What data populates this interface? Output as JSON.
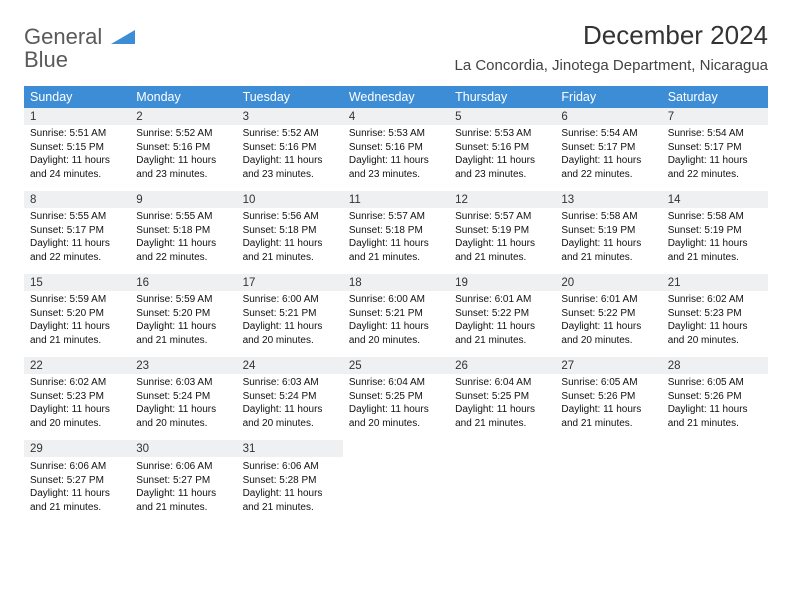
{
  "logo": {
    "text1": "General",
    "text2": "Blue"
  },
  "title": "December 2024",
  "location": "La Concordia, Jinotega Department, Nicaragua",
  "colors": {
    "header_bg": "#3c8dd6",
    "daynum_bg": "#eef0f1",
    "row_border": "#3c8dd6",
    "text": "#111111",
    "title_text": "#333333"
  },
  "dayNames": [
    "Sunday",
    "Monday",
    "Tuesday",
    "Wednesday",
    "Thursday",
    "Friday",
    "Saturday"
  ],
  "weeks": [
    [
      {
        "n": "1",
        "sr": "5:51 AM",
        "ss": "5:15 PM",
        "dl": "11 hours and 24 minutes."
      },
      {
        "n": "2",
        "sr": "5:52 AM",
        "ss": "5:16 PM",
        "dl": "11 hours and 23 minutes."
      },
      {
        "n": "3",
        "sr": "5:52 AM",
        "ss": "5:16 PM",
        "dl": "11 hours and 23 minutes."
      },
      {
        "n": "4",
        "sr": "5:53 AM",
        "ss": "5:16 PM",
        "dl": "11 hours and 23 minutes."
      },
      {
        "n": "5",
        "sr": "5:53 AM",
        "ss": "5:16 PM",
        "dl": "11 hours and 23 minutes."
      },
      {
        "n": "6",
        "sr": "5:54 AM",
        "ss": "5:17 PM",
        "dl": "11 hours and 22 minutes."
      },
      {
        "n": "7",
        "sr": "5:54 AM",
        "ss": "5:17 PM",
        "dl": "11 hours and 22 minutes."
      }
    ],
    [
      {
        "n": "8",
        "sr": "5:55 AM",
        "ss": "5:17 PM",
        "dl": "11 hours and 22 minutes."
      },
      {
        "n": "9",
        "sr": "5:55 AM",
        "ss": "5:18 PM",
        "dl": "11 hours and 22 minutes."
      },
      {
        "n": "10",
        "sr": "5:56 AM",
        "ss": "5:18 PM",
        "dl": "11 hours and 21 minutes."
      },
      {
        "n": "11",
        "sr": "5:57 AM",
        "ss": "5:18 PM",
        "dl": "11 hours and 21 minutes."
      },
      {
        "n": "12",
        "sr": "5:57 AM",
        "ss": "5:19 PM",
        "dl": "11 hours and 21 minutes."
      },
      {
        "n": "13",
        "sr": "5:58 AM",
        "ss": "5:19 PM",
        "dl": "11 hours and 21 minutes."
      },
      {
        "n": "14",
        "sr": "5:58 AM",
        "ss": "5:19 PM",
        "dl": "11 hours and 21 minutes."
      }
    ],
    [
      {
        "n": "15",
        "sr": "5:59 AM",
        "ss": "5:20 PM",
        "dl": "11 hours and 21 minutes."
      },
      {
        "n": "16",
        "sr": "5:59 AM",
        "ss": "5:20 PM",
        "dl": "11 hours and 21 minutes."
      },
      {
        "n": "17",
        "sr": "6:00 AM",
        "ss": "5:21 PM",
        "dl": "11 hours and 20 minutes."
      },
      {
        "n": "18",
        "sr": "6:00 AM",
        "ss": "5:21 PM",
        "dl": "11 hours and 20 minutes."
      },
      {
        "n": "19",
        "sr": "6:01 AM",
        "ss": "5:22 PM",
        "dl": "11 hours and 21 minutes."
      },
      {
        "n": "20",
        "sr": "6:01 AM",
        "ss": "5:22 PM",
        "dl": "11 hours and 20 minutes."
      },
      {
        "n": "21",
        "sr": "6:02 AM",
        "ss": "5:23 PM",
        "dl": "11 hours and 20 minutes."
      }
    ],
    [
      {
        "n": "22",
        "sr": "6:02 AM",
        "ss": "5:23 PM",
        "dl": "11 hours and 20 minutes."
      },
      {
        "n": "23",
        "sr": "6:03 AM",
        "ss": "5:24 PM",
        "dl": "11 hours and 20 minutes."
      },
      {
        "n": "24",
        "sr": "6:03 AM",
        "ss": "5:24 PM",
        "dl": "11 hours and 20 minutes."
      },
      {
        "n": "25",
        "sr": "6:04 AM",
        "ss": "5:25 PM",
        "dl": "11 hours and 20 minutes."
      },
      {
        "n": "26",
        "sr": "6:04 AM",
        "ss": "5:25 PM",
        "dl": "11 hours and 21 minutes."
      },
      {
        "n": "27",
        "sr": "6:05 AM",
        "ss": "5:26 PM",
        "dl": "11 hours and 21 minutes."
      },
      {
        "n": "28",
        "sr": "6:05 AM",
        "ss": "5:26 PM",
        "dl": "11 hours and 21 minutes."
      }
    ],
    [
      {
        "n": "29",
        "sr": "6:06 AM",
        "ss": "5:27 PM",
        "dl": "11 hours and 21 minutes."
      },
      {
        "n": "30",
        "sr": "6:06 AM",
        "ss": "5:27 PM",
        "dl": "11 hours and 21 minutes."
      },
      {
        "n": "31",
        "sr": "6:06 AM",
        "ss": "5:28 PM",
        "dl": "11 hours and 21 minutes."
      },
      null,
      null,
      null,
      null
    ]
  ],
  "labels": {
    "sunrise": "Sunrise:",
    "sunset": "Sunset:",
    "daylight": "Daylight:"
  }
}
